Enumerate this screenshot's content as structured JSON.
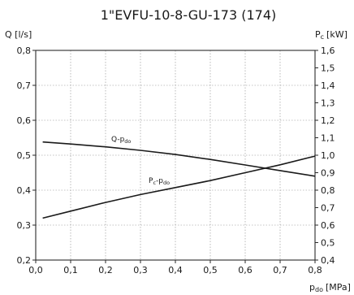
{
  "chart_data": {
    "type": "line",
    "title": "1\"EVFU-10-8-GU-173 (174)",
    "xlabel": "p_do [MPa]",
    "xlabel_main": "p",
    "xlabel_sub": "do",
    "xlabel_unit": "[MPa]",
    "ylabel_left": "Q [l/s]",
    "ylabel_right_main": "P",
    "ylabel_right_sub": "c",
    "ylabel_right_unit": "[kW]",
    "xlim": [
      0,
      0.8
    ],
    "ylim_left": [
      0.2,
      0.8
    ],
    "ylim_right": [
      0.4,
      1.6
    ],
    "x_ticks": [
      "0,0",
      "0,1",
      "0,2",
      "0,3",
      "0,4",
      "0,5",
      "0,6",
      "0,7",
      "0,8"
    ],
    "y_left_ticks": [
      "0,2",
      "0,3",
      "0,4",
      "0,5",
      "0,6",
      "0,7",
      "0,8"
    ],
    "y_right_ticks": [
      "0,4",
      "0,5",
      "0,6",
      "0,7",
      "0,8",
      "0,9",
      "1,0",
      "1,1",
      "1,2",
      "1,3",
      "1,4",
      "1,5",
      "1,6"
    ],
    "grid": true,
    "series": [
      {
        "label_main": "Q-p",
        "label_sub": "do",
        "axis": "left",
        "x": [
          0.02,
          0.1,
          0.2,
          0.3,
          0.4,
          0.5,
          0.6,
          0.7,
          0.8
        ],
        "y": [
          0.538,
          0.532,
          0.524,
          0.514,
          0.502,
          0.488,
          0.472,
          0.456,
          0.44
        ]
      },
      {
        "label_main": "P",
        "label_main_sub": "c",
        "label_tail": "-p",
        "label_sub": "do",
        "axis": "right",
        "x": [
          0.02,
          0.1,
          0.2,
          0.3,
          0.4,
          0.5,
          0.6,
          0.7,
          0.8
        ],
        "y": [
          0.64,
          0.68,
          0.73,
          0.775,
          0.815,
          0.855,
          0.9,
          0.945,
          0.995
        ]
      }
    ]
  }
}
